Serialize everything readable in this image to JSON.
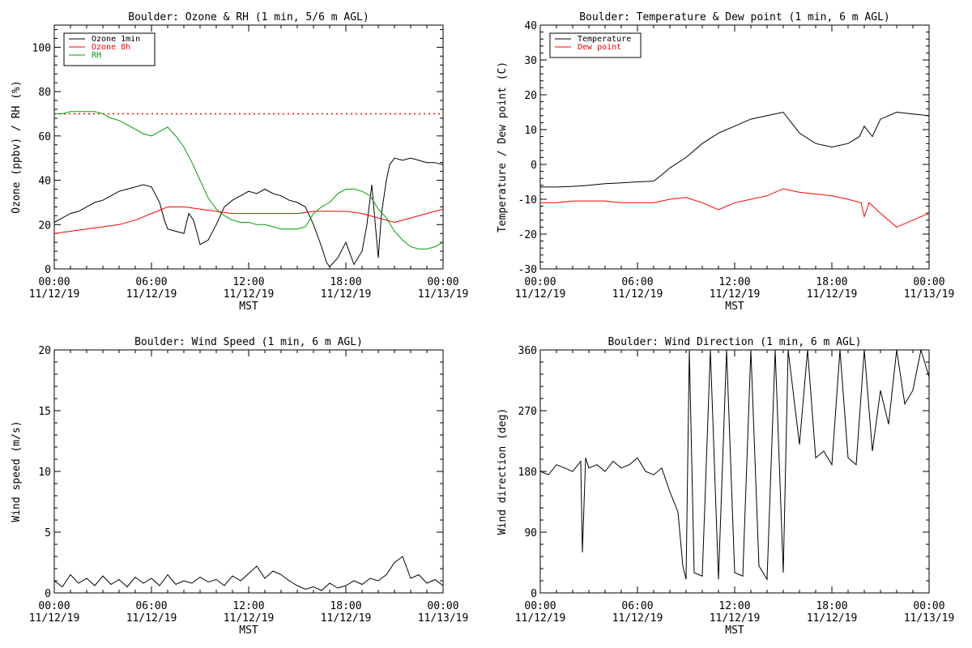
{
  "chart_data": [
    {
      "type": "line",
      "title": "Boulder: Ozone & RH (1 min, 5/6 m AGL)",
      "xlabel": "MST",
      "ylabel": "Ozone (ppbv) / RH (%)",
      "xlim": [
        0,
        24
      ],
      "ylim": [
        0,
        110
      ],
      "yticks": [
        0,
        20,
        40,
        60,
        80,
        100
      ],
      "xticks": [
        {
          "time": "00:00",
          "date": "11/12/19"
        },
        {
          "time": "06:00",
          "date": "11/12/19"
        },
        {
          "time": "12:00",
          "date": "11/12/19"
        },
        {
          "time": "18:00",
          "date": "11/12/19"
        },
        {
          "time": "00:00",
          "date": "11/13/19"
        }
      ],
      "legend_position": "top-left",
      "reference_line": {
        "y": 70,
        "style": "dotted",
        "color": "#ff0000"
      },
      "series": [
        {
          "name": "Ozone 1min",
          "color": "#000000",
          "x": [
            0,
            0.5,
            1,
            1.5,
            2,
            2.5,
            3,
            3.5,
            4,
            4.5,
            5,
            5.5,
            6,
            6.5,
            6.8,
            7,
            7.5,
            8,
            8.3,
            8.6,
            9,
            9.5,
            10,
            10.5,
            11,
            11.5,
            12,
            12.5,
            13,
            13.5,
            14,
            14.5,
            15,
            15.5,
            16,
            16.5,
            16.8,
            17,
            17.5,
            18,
            18.5,
            19,
            19.3,
            19.6,
            20,
            20.2,
            20.5,
            20.7,
            21,
            21.5,
            22,
            22.5,
            23,
            23.5,
            24
          ],
          "y": [
            21,
            23,
            25,
            26,
            28,
            30,
            31,
            33,
            35,
            36,
            37,
            38,
            37,
            30,
            22,
            18,
            17,
            16,
            25,
            22,
            11,
            13,
            20,
            28,
            31,
            33,
            35,
            34,
            36,
            34,
            33,
            31,
            30,
            28,
            20,
            10,
            3,
            1,
            5,
            12,
            2,
            8,
            20,
            38,
            5,
            25,
            40,
            47,
            50,
            49,
            50,
            49,
            48,
            48,
            47
          ]
        },
        {
          "name": "Ozone 8h",
          "color": "#ff0000",
          "x": [
            0,
            1,
            2,
            3,
            4,
            5,
            6,
            7,
            8,
            9,
            10,
            11,
            12,
            13,
            14,
            15,
            16,
            17,
            18,
            19,
            20,
            21,
            22,
            23,
            24
          ],
          "y": [
            16,
            17,
            18,
            19,
            20,
            22,
            25,
            28,
            28,
            27,
            26,
            25,
            25,
            25,
            25,
            25,
            26,
            26,
            26,
            25,
            23,
            21,
            23,
            25,
            27
          ]
        },
        {
          "name": "RH",
          "color": "#00a000",
          "x": [
            0,
            0.5,
            1,
            1.5,
            2,
            2.5,
            3,
            3.5,
            4,
            4.5,
            5,
            5.5,
            6,
            6.5,
            7,
            7.5,
            8,
            8.5,
            9,
            9.5,
            10,
            10.5,
            11,
            11.5,
            12,
            12.5,
            13,
            13.5,
            14,
            14.5,
            15,
            15.5,
            16,
            16.5,
            17,
            17.5,
            18,
            18.5,
            19,
            19.5,
            20,
            20.5,
            21,
            21.5,
            22,
            22.5,
            23,
            23.5,
            24
          ],
          "y": [
            70,
            70,
            71,
            71,
            71,
            71,
            70,
            68,
            67,
            65,
            63,
            61,
            60,
            62,
            64,
            60,
            55,
            48,
            40,
            32,
            27,
            24,
            22,
            21,
            21,
            20,
            20,
            19,
            18,
            18,
            18,
            19,
            25,
            28,
            30,
            34,
            36,
            36,
            35,
            33,
            27,
            23,
            17,
            13,
            10,
            9,
            9,
            10,
            12
          ]
        }
      ]
    },
    {
      "type": "line",
      "title": "Boulder: Temperature & Dew point (1 min, 6 m AGL)",
      "xlabel": "MST",
      "ylabel": "Temperature / Dew point (C)",
      "xlim": [
        0,
        24
      ],
      "ylim": [
        -30,
        40
      ],
      "yticks": [
        -30,
        -20,
        -10,
        0,
        10,
        20,
        30,
        40
      ],
      "xticks": [
        {
          "time": "00:00",
          "date": "11/12/19"
        },
        {
          "time": "06:00",
          "date": "11/12/19"
        },
        {
          "time": "12:00",
          "date": "11/12/19"
        },
        {
          "time": "18:00",
          "date": "11/12/19"
        },
        {
          "time": "00:00",
          "date": "11/13/19"
        }
      ],
      "legend_position": "top-left",
      "series": [
        {
          "name": "Temperature",
          "color": "#000000",
          "x": [
            0,
            1,
            2,
            3,
            4,
            5,
            6,
            7,
            7.5,
            8,
            9,
            10,
            11,
            12,
            13,
            14,
            15,
            15.5,
            16,
            17,
            18,
            19,
            19.7,
            20,
            20.5,
            21,
            22,
            23,
            24
          ],
          "y": [
            -6.5,
            -6.5,
            -6.3,
            -6,
            -5.5,
            -5.3,
            -5,
            -4.8,
            -3,
            -1,
            2,
            6,
            9,
            11,
            13,
            14,
            15,
            12,
            9,
            6,
            5,
            6,
            8,
            11,
            8,
            13,
            15,
            14.5,
            14
          ]
        },
        {
          "name": "Dew point",
          "color": "#ff0000",
          "x": [
            0,
            1,
            2,
            3,
            4,
            5,
            6,
            7,
            8,
            9,
            10,
            11,
            12,
            13,
            14,
            15,
            16,
            17,
            18,
            19,
            19.8,
            20,
            20.3,
            21,
            22,
            23,
            24
          ],
          "y": [
            -11,
            -11,
            -10.5,
            -10.5,
            -10.5,
            -11,
            -11,
            -11,
            -10,
            -9.5,
            -11,
            -13,
            -11,
            -10,
            -9,
            -7,
            -8,
            -8.5,
            -9,
            -10,
            -11,
            -15,
            -11,
            -14,
            -18,
            -16,
            -14
          ]
        }
      ]
    },
    {
      "type": "line",
      "title": "Boulder: Wind Speed (1 min, 6 m AGL)",
      "xlabel": "MST",
      "ylabel": "Wind speed (m/s)",
      "xlim": [
        0,
        24
      ],
      "ylim": [
        0,
        20
      ],
      "yticks": [
        0,
        5,
        10,
        15,
        20
      ],
      "xticks": [
        {
          "time": "00:00",
          "date": "11/12/19"
        },
        {
          "time": "06:00",
          "date": "11/12/19"
        },
        {
          "time": "12:00",
          "date": "11/12/19"
        },
        {
          "time": "18:00",
          "date": "11/12/19"
        },
        {
          "time": "00:00",
          "date": "11/13/19"
        }
      ],
      "series": [
        {
          "color": "#000000",
          "x": [
            0,
            0.5,
            1,
            1.5,
            2,
            2.5,
            3,
            3.5,
            4,
            4.5,
            5,
            5.5,
            6,
            6.5,
            7,
            7.5,
            8,
            8.5,
            9,
            9.5,
            10,
            10.5,
            11,
            11.5,
            12,
            12.5,
            13,
            13.5,
            14,
            14.5,
            15,
            15.5,
            16,
            16.5,
            17,
            17.5,
            18,
            18.5,
            19,
            19.5,
            20,
            20.5,
            21,
            21.5,
            22,
            22.5,
            23,
            23.5,
            24
          ],
          "y": [
            1.0,
            0.5,
            1.5,
            0.8,
            1.2,
            0.6,
            1.4,
            0.7,
            1.1,
            0.5,
            1.3,
            0.8,
            1.2,
            0.6,
            1.5,
            0.7,
            1.0,
            0.8,
            1.3,
            0.9,
            1.1,
            0.6,
            1.4,
            1.0,
            1.6,
            2.2,
            1.2,
            1.8,
            1.5,
            1.0,
            0.6,
            0.3,
            0.5,
            0.2,
            0.8,
            0.4,
            0.6,
            1.0,
            0.7,
            1.2,
            1.0,
            1.5,
            2.5,
            3.0,
            1.2,
            1.5,
            0.8,
            1.1,
            0.6
          ]
        }
      ]
    },
    {
      "type": "line",
      "title": "Boulder: Wind Direction (1 min, 6 m AGL)",
      "xlabel": "MST",
      "ylabel": "Wind direction (deg)",
      "xlim": [
        0,
        24
      ],
      "ylim": [
        0,
        360
      ],
      "yticks": [
        0,
        90,
        180,
        270,
        360
      ],
      "xticks": [
        {
          "time": "00:00",
          "date": "11/12/19"
        },
        {
          "time": "06:00",
          "date": "11/12/19"
        },
        {
          "time": "12:00",
          "date": "11/12/19"
        },
        {
          "time": "18:00",
          "date": "11/12/19"
        },
        {
          "time": "00:00",
          "date": "11/13/19"
        }
      ],
      "series": [
        {
          "color": "#000000",
          "x": [
            0,
            0.5,
            1,
            1.5,
            2,
            2.5,
            2.6,
            2.8,
            3,
            3.5,
            4,
            4.5,
            5,
            5.5,
            6,
            6.5,
            7,
            7.5,
            8,
            8.5,
            8.8,
            9,
            9.2,
            9.5,
            10,
            10.5,
            11,
            11.5,
            12,
            12.5,
            13,
            13.5,
            14,
            14.5,
            15,
            15.3,
            15.6,
            16,
            16.5,
            17,
            17.5,
            18,
            18.5,
            19,
            19.5,
            20,
            20.5,
            21,
            21.5,
            22,
            22.5,
            23,
            23.5,
            24
          ],
          "y": [
            180,
            175,
            190,
            185,
            180,
            195,
            60,
            200,
            185,
            190,
            180,
            195,
            185,
            190,
            200,
            180,
            175,
            185,
            150,
            120,
            40,
            20,
            360,
            30,
            25,
            360,
            20,
            360,
            30,
            25,
            360,
            40,
            20,
            360,
            30,
            360,
            300,
            220,
            360,
            200,
            210,
            190,
            360,
            200,
            190,
            360,
            210,
            300,
            250,
            360,
            280,
            300,
            360,
            320
          ]
        }
      ]
    }
  ]
}
